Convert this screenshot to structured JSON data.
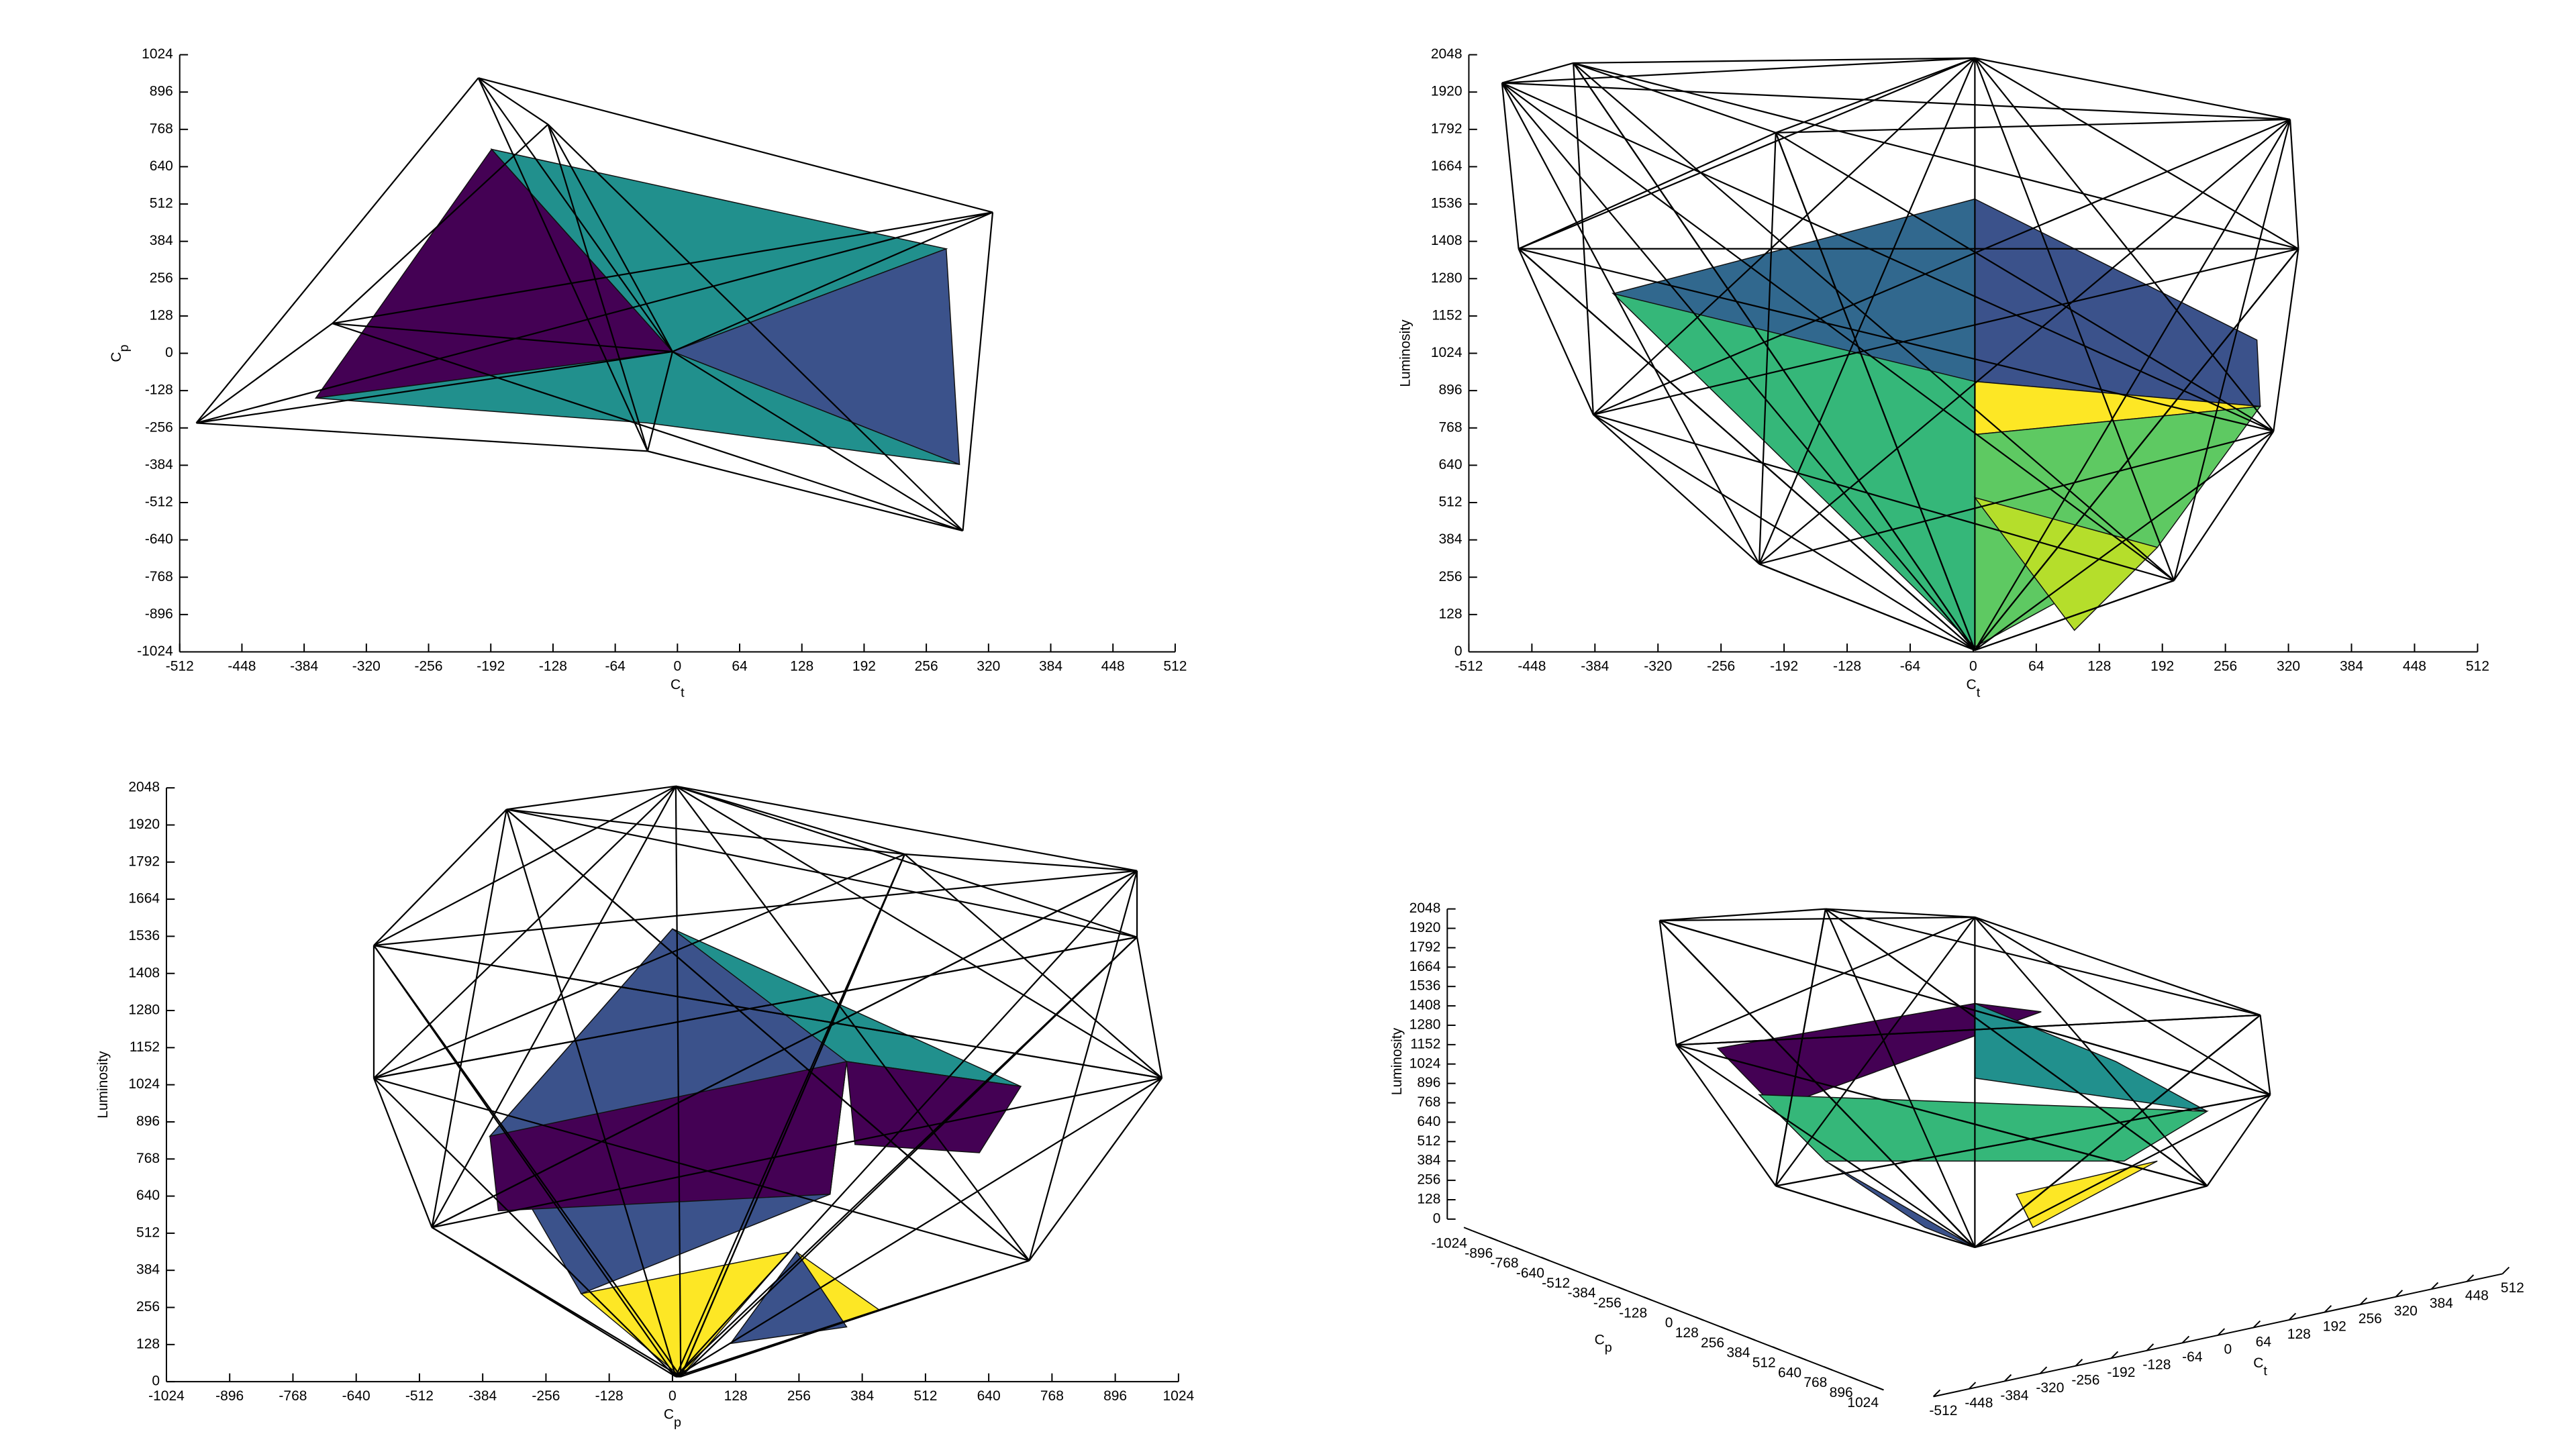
{
  "chart_data": [
    {
      "type": "mesh2d",
      "xlabel": [
        "C",
        "t"
      ],
      "ylabel": [
        "C",
        "p"
      ],
      "xlim": [
        -512,
        512
      ],
      "xticks": [
        -512,
        -448,
        -384,
        -320,
        -256,
        -192,
        -128,
        -64,
        0,
        64,
        128,
        192,
        256,
        320,
        384,
        448,
        512
      ],
      "ylim": [
        -1024,
        1024
      ],
      "yticks": [
        -1024,
        -896,
        -768,
        -640,
        -512,
        -384,
        -256,
        -128,
        0,
        128,
        256,
        384,
        512,
        640,
        768,
        896,
        1024
      ]
    },
    {
      "type": "mesh2d",
      "xlabel": [
        "C",
        "t"
      ],
      "ylabel": [
        "Luminosity"
      ],
      "xlim": [
        -512,
        512
      ],
      "xticks": [
        -512,
        -448,
        -384,
        -320,
        -256,
        -192,
        -128,
        -64,
        0,
        64,
        128,
        192,
        256,
        320,
        384,
        448,
        512
      ],
      "ylim": [
        0,
        2048
      ],
      "yticks": [
        0,
        128,
        256,
        384,
        512,
        640,
        768,
        896,
        1024,
        1152,
        1280,
        1408,
        1536,
        1664,
        1792,
        1920,
        2048
      ]
    },
    {
      "type": "mesh2d",
      "xlabel": [
        "C",
        "p"
      ],
      "ylabel": [
        "Luminosity"
      ],
      "xlim": [
        -1024,
        1024
      ],
      "xticks": [
        -1024,
        -896,
        -768,
        -640,
        -512,
        -384,
        -256,
        -128,
        0,
        128,
        256,
        384,
        512,
        640,
        768,
        896,
        1024
      ],
      "ylim": [
        0,
        2048
      ],
      "yticks": [
        0,
        128,
        256,
        384,
        512,
        640,
        768,
        896,
        1024,
        1152,
        1280,
        1408,
        1536,
        1664,
        1792,
        1920,
        2048
      ]
    },
    {
      "type": "mesh3d",
      "xlabel": [
        "C",
        "t"
      ],
      "ylabel": [
        "C",
        "p"
      ],
      "zlabel": [
        "Luminosity"
      ],
      "xlim": [
        -512,
        512
      ],
      "xticks": [
        -512,
        -448,
        -384,
        -320,
        -256,
        -192,
        -128,
        -64,
        0,
        64,
        128,
        192,
        256,
        320,
        384,
        448,
        512
      ],
      "ylim": [
        -1024,
        1024
      ],
      "yticks": [
        -1024,
        -896,
        -768,
        -640,
        -512,
        -384,
        -256,
        -128,
        0,
        128,
        256,
        384,
        512,
        640,
        768,
        896,
        1024
      ],
      "zlim": [
        0,
        2048
      ],
      "zticks": [
        0,
        128,
        256,
        384,
        512,
        640,
        768,
        896,
        1024,
        1152,
        1280,
        1408,
        1536,
        1664,
        1792,
        1920,
        2048
      ]
    }
  ]
}
